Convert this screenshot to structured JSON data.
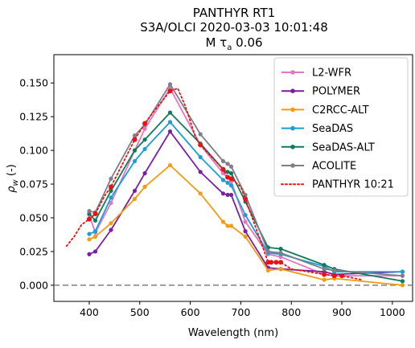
{
  "chart_data": {
    "type": "line",
    "title_lines": [
      "PANTHYR RT1",
      "S3A/OLCI 2020-03-03 10:01:48",
      "M τ",
      "a",
      " 0.06"
    ],
    "xlabel": "Wavelength (nm)",
    "ylabel_parts": [
      "ρ",
      "w",
      " (-)"
    ],
    "xlim": [
      330,
      1040
    ],
    "ylim": [
      -0.012,
      0.171
    ],
    "xticks": [
      400,
      500,
      600,
      700,
      800,
      900,
      1000
    ],
    "yticks": [
      0.0,
      0.025,
      0.05,
      0.075,
      0.1,
      0.125,
      0.15
    ],
    "ytick_labels": [
      "0.000",
      "0.025",
      "0.050",
      "0.075",
      "0.100",
      "0.125",
      "0.150"
    ],
    "legend_position": "top-right",
    "hline": {
      "y": 0,
      "style": "dashed",
      "color": "#808080"
    },
    "series": [
      {
        "name": "L2-WFR",
        "color": "#e377c2",
        "style": "line-marker",
        "x": [
          400,
          412,
          443,
          490,
          510,
          560,
          620,
          665,
          674,
          681,
          709,
          754,
          779,
          865,
          885,
          1020
        ],
        "y": [
          0.052,
          0.039,
          0.061,
          0.1,
          0.116,
          0.146,
          0.104,
          0.083,
          0.08,
          0.077,
          0.047,
          0.023,
          0.021,
          0.008,
          0.007,
          0.007
        ]
      },
      {
        "name": "POLYMER",
        "color": "#7b1fa2",
        "style": "line-marker",
        "x": [
          400,
          412,
          443,
          490,
          510,
          560,
          620,
          665,
          674,
          681,
          709,
          754,
          779,
          865,
          885,
          1020
        ],
        "y": [
          0.023,
          0.025,
          0.041,
          0.07,
          0.083,
          0.114,
          0.084,
          0.068,
          0.067,
          0.067,
          0.04,
          0.013,
          0.012,
          0.01,
          0.008,
          0.01
        ]
      },
      {
        "name": "C2RCC-ALT",
        "color": "#f39c12",
        "style": "line-marker",
        "x": [
          400,
          412,
          443,
          490,
          510,
          560,
          620,
          665,
          674,
          681,
          709,
          754,
          779,
          865,
          885,
          1020
        ],
        "y": [
          0.034,
          0.036,
          0.046,
          0.064,
          0.073,
          0.089,
          0.068,
          0.047,
          0.044,
          0.044,
          0.036,
          0.011,
          0.012,
          0.004,
          0.005,
          0.0
        ]
      },
      {
        "name": "SeaDAS",
        "color": "#1a9fd5",
        "style": "line-marker",
        "x": [
          400,
          412,
          443,
          490,
          510,
          560,
          620,
          665,
          674,
          681,
          709,
          754,
          779,
          865,
          885,
          1020
        ],
        "y": [
          0.038,
          0.04,
          0.065,
          0.092,
          0.101,
          0.121,
          0.095,
          0.078,
          0.076,
          0.074,
          0.052,
          0.024,
          0.023,
          0.014,
          0.01,
          0.01
        ]
      },
      {
        "name": "SeaDAS-ALT",
        "color": "#107a5c",
        "style": "line-marker",
        "x": [
          400,
          412,
          443,
          490,
          510,
          560,
          620,
          665,
          674,
          681,
          709,
          754,
          779,
          865,
          885,
          1020
        ],
        "y": [
          0.053,
          0.048,
          0.07,
          0.1,
          0.108,
          0.128,
          0.105,
          0.086,
          0.084,
          0.083,
          0.062,
          0.028,
          0.027,
          0.015,
          0.012,
          0.003
        ]
      },
      {
        "name": "ACOLITE",
        "color": "#7f7f8c",
        "style": "line-marker",
        "x": [
          400,
          412,
          443,
          490,
          510,
          560,
          620,
          665,
          674,
          681,
          709,
          754,
          779,
          865,
          885,
          1020
        ],
        "y": [
          0.055,
          0.054,
          0.079,
          0.111,
          0.119,
          0.149,
          0.112,
          0.092,
          0.09,
          0.088,
          0.067,
          0.025,
          0.024,
          0.012,
          0.011,
          0.007
        ]
      },
      {
        "name": "PANTHYR 10:21",
        "color": "#ee1111",
        "style": "dotted-line",
        "x": [
          355,
          370,
          385,
          400,
          412,
          430,
          443,
          470,
          490,
          510,
          530,
          560,
          575,
          590,
          610,
          620,
          640,
          665,
          674,
          681,
          700,
          709,
          740,
          754,
          760,
          770,
          779,
          800,
          865,
          885,
          900,
          940
        ],
        "y": [
          0.029,
          0.036,
          0.045,
          0.049,
          0.053,
          0.066,
          0.073,
          0.093,
          0.108,
          0.12,
          0.13,
          0.144,
          0.146,
          0.133,
          0.11,
          0.104,
          0.096,
          0.086,
          0.08,
          0.079,
          0.073,
          0.064,
          0.032,
          0.017,
          0.017,
          0.017,
          0.017,
          0.012,
          0.008,
          0.007,
          0.007,
          0.004
        ],
        "marker_x": [
          400,
          412,
          443,
          490,
          510,
          560,
          620,
          665,
          674,
          681,
          709,
          754,
          760,
          770,
          779,
          865,
          885,
          900
        ],
        "marker_y": [
          0.049,
          0.053,
          0.073,
          0.108,
          0.12,
          0.144,
          0.104,
          0.086,
          0.08,
          0.079,
          0.064,
          0.017,
          0.017,
          0.017,
          0.017,
          0.008,
          0.007,
          0.007
        ]
      }
    ]
  }
}
